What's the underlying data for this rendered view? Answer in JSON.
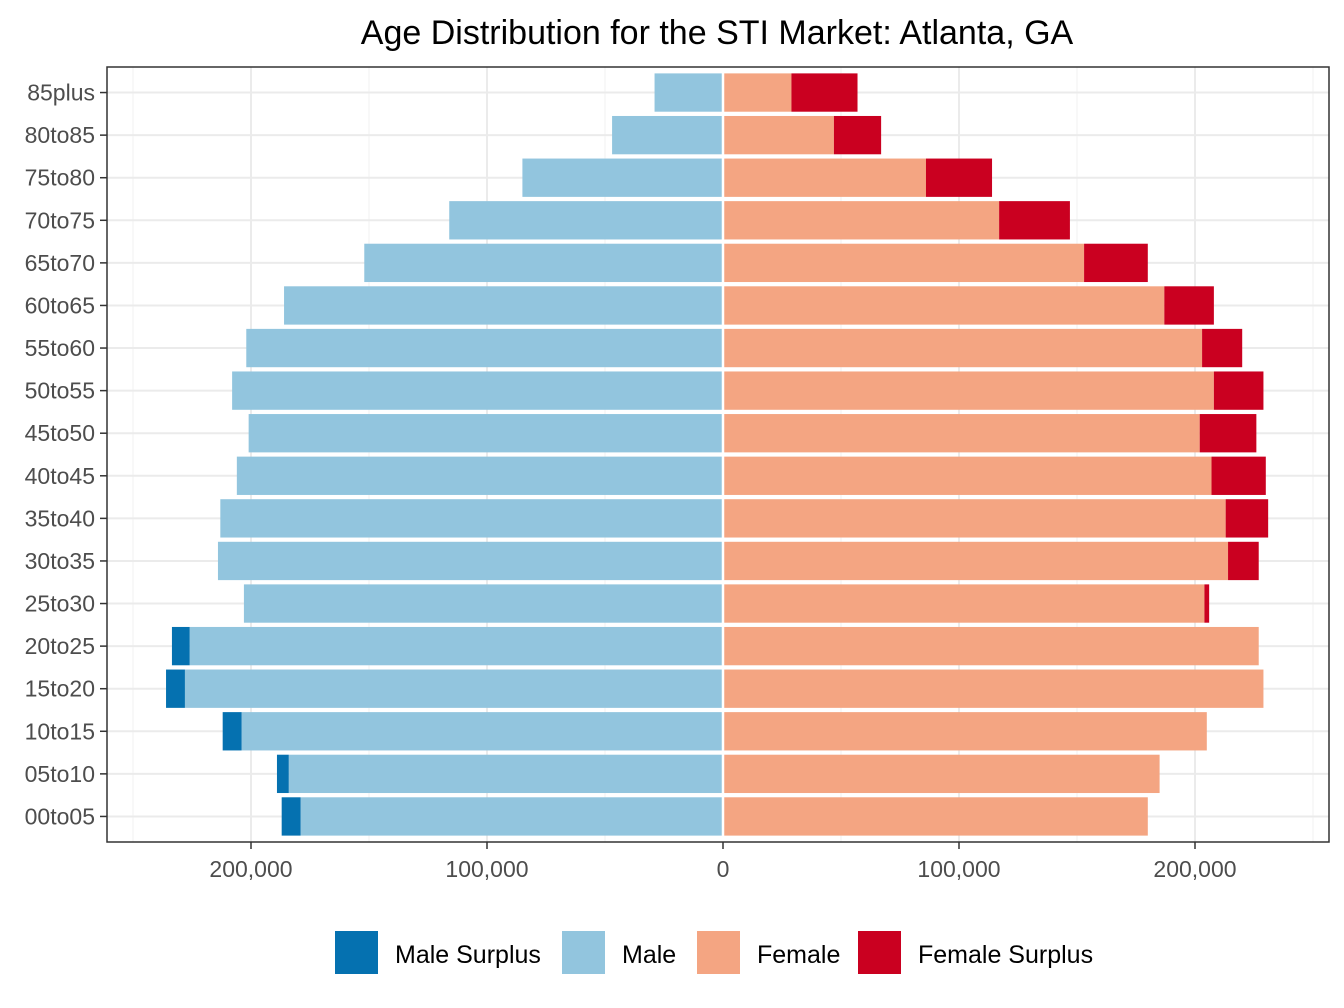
{
  "chart_data": {
    "type": "bar",
    "orientation": "horizontal",
    "layout": "population pyramid (male to the left, female to the right)",
    "title": "Age Distribution for the STI Market: Atlanta, GA",
    "xlabel": "",
    "ylabel": "",
    "categories": [
      "00to05",
      "05to10",
      "10to15",
      "15to20",
      "20to25",
      "25to30",
      "30to35",
      "35to40",
      "40to45",
      "45to50",
      "50to55",
      "55to60",
      "60to65",
      "65to70",
      "70to75",
      "75to80",
      "80to85",
      "85plus"
    ],
    "series": [
      {
        "name": "Male Surplus",
        "color": "#0571b0",
        "side": "left",
        "values": [
          8000,
          5000,
          8000,
          8000,
          7500,
          0,
          0,
          0,
          0,
          0,
          0,
          0,
          0,
          0,
          0,
          0,
          0,
          0
        ]
      },
      {
        "name": "Male",
        "color": "#92c5de",
        "side": "left",
        "values": [
          179000,
          184000,
          204000,
          228000,
          226000,
          203000,
          214000,
          213000,
          206000,
          201000,
          208000,
          202000,
          186000,
          152000,
          116000,
          85000,
          47000,
          29000
        ]
      },
      {
        "name": "Female",
        "color": "#f4a582",
        "side": "right",
        "values": [
          180000,
          185000,
          205000,
          229000,
          227000,
          204000,
          214000,
          213000,
          207000,
          202000,
          208000,
          203000,
          187000,
          153000,
          117000,
          86000,
          47000,
          29000
        ]
      },
      {
        "name": "Female Surplus",
        "color": "#ca0020",
        "side": "right",
        "values": [
          0,
          0,
          0,
          0,
          0,
          2000,
          13000,
          18000,
          23000,
          24000,
          21000,
          17000,
          21000,
          27000,
          30000,
          28000,
          20000,
          28000
        ]
      }
    ],
    "xlim": [
      -250000,
      250000
    ],
    "x_ticks": [
      {
        "value": -200000,
        "label": "200,000"
      },
      {
        "value": -100000,
        "label": "100,000"
      },
      {
        "value": 0,
        "label": "0"
      },
      {
        "value": 100000,
        "label": "100,000"
      },
      {
        "value": 200000,
        "label": "200,000"
      }
    ],
    "grid": true,
    "legend_position": "bottom"
  }
}
